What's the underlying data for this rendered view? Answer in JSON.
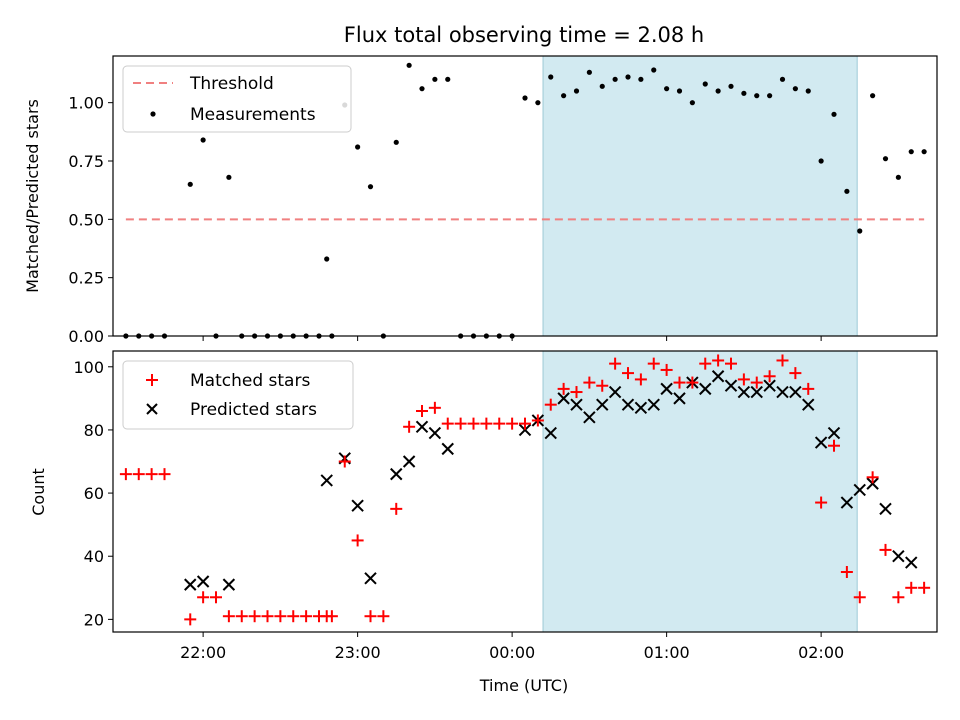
{
  "figure": {
    "title": "Flux total observing time = 2.08 h",
    "shaded_span": {
      "start": "00:12",
      "end": "02:14",
      "color": "#add8e6"
    }
  },
  "chart_data": [
    {
      "type": "scatter",
      "panel": "top",
      "title": "Flux total observing time = 2.08 h",
      "xlabel": "",
      "ylabel": "Matched/Predicted stars",
      "ylim": [
        0,
        1.2
      ],
      "yticks": [
        "0.00",
        "0.25",
        "0.50",
        "0.75",
        "1.00"
      ],
      "ytick_values": [
        0,
        0.25,
        0.5,
        0.75,
        1.0
      ],
      "legend": {
        "placement": "top-left",
        "entries": [
          "Threshold",
          "Measurements"
        ]
      },
      "threshold": {
        "name": "Threshold",
        "y": 0.5,
        "x_start": "21:30",
        "x_end": "02:40",
        "color": "#f08080"
      },
      "series": [
        {
          "name": "Measurements",
          "color": "#000000",
          "x": [
            "21:30",
            "21:35",
            "21:40",
            "21:45",
            "21:55",
            "22:00",
            "22:05",
            "22:10",
            "22:15",
            "22:20",
            "22:25",
            "22:30",
            "22:35",
            "22:40",
            "22:45",
            "22:48",
            "22:50",
            "22:55",
            "23:00",
            "23:05",
            "23:10",
            "23:15",
            "23:20",
            "23:25",
            "23:30",
            "23:35",
            "23:40",
            "23:45",
            "23:50",
            "23:55",
            "00:00",
            "00:05",
            "00:10",
            "00:15",
            "00:20",
            "00:25",
            "00:30",
            "00:35",
            "00:40",
            "00:45",
            "00:50",
            "00:55",
            "01:00",
            "01:05",
            "01:10",
            "01:15",
            "01:20",
            "01:25",
            "01:30",
            "01:35",
            "01:40",
            "01:45",
            "01:50",
            "01:55",
            "02:00",
            "02:05",
            "02:10",
            "02:15",
            "02:20",
            "02:25",
            "02:30",
            "02:35",
            "02:40"
          ],
          "values": [
            0,
            0,
            0,
            0,
            0.65,
            0.84,
            0,
            0.68,
            0,
            0,
            0,
            0,
            0,
            0,
            0,
            0.33,
            0,
            0.99,
            0.81,
            0.64,
            0,
            0.83,
            1.16,
            1.06,
            1.1,
            1.1,
            0,
            0,
            0,
            0,
            0,
            1.02,
            1.0,
            1.11,
            1.03,
            1.05,
            1.13,
            1.07,
            1.1,
            1.11,
            1.1,
            1.14,
            1.06,
            1.05,
            1.0,
            1.08,
            1.05,
            1.07,
            1.04,
            1.03,
            1.03,
            1.1,
            1.06,
            1.05,
            0.75,
            0.95,
            0.62,
            0.45,
            1.03,
            0.76,
            0.68,
            0.79,
            0.79
          ]
        }
      ]
    },
    {
      "type": "scatter",
      "panel": "bottom",
      "xlabel": "Time (UTC)",
      "ylabel": "Count",
      "ylim": [
        16,
        105
      ],
      "yticks": [
        "20",
        "40",
        "60",
        "80",
        "100"
      ],
      "ytick_values": [
        20,
        40,
        60,
        80,
        100
      ],
      "xlim": [
        "21:25",
        "02:45"
      ],
      "xticks": [
        "22:00",
        "23:00",
        "00:00",
        "01:00",
        "02:00"
      ],
      "legend": {
        "placement": "top-left",
        "entries": [
          "Matched stars",
          "Predicted stars"
        ]
      },
      "series": [
        {
          "name": "Matched stars",
          "color": "#ff0000",
          "marker": "plus",
          "x": [
            "21:30",
            "21:35",
            "21:40",
            "21:45",
            "21:55",
            "22:00",
            "22:05",
            "22:10",
            "22:15",
            "22:20",
            "22:25",
            "22:30",
            "22:35",
            "22:40",
            "22:45",
            "22:48",
            "22:50",
            "22:55",
            "23:00",
            "23:05",
            "23:10",
            "23:15",
            "23:20",
            "23:25",
            "23:30",
            "23:35",
            "23:40",
            "23:45",
            "23:50",
            "23:55",
            "00:00",
            "00:05",
            "00:10",
            "00:15",
            "00:20",
            "00:25",
            "00:30",
            "00:35",
            "00:40",
            "00:45",
            "00:50",
            "00:55",
            "01:00",
            "01:05",
            "01:10",
            "01:15",
            "01:20",
            "01:25",
            "01:30",
            "01:35",
            "01:40",
            "01:45",
            "01:50",
            "01:55",
            "02:00",
            "02:05",
            "02:10",
            "02:15",
            "02:20",
            "02:25",
            "02:30",
            "02:35",
            "02:40"
          ],
          "values": [
            66,
            66,
            66,
            66,
            20,
            27,
            27,
            21,
            21,
            21,
            21,
            21,
            21,
            21,
            21,
            21,
            21,
            70,
            45,
            21,
            21,
            55,
            81,
            86,
            87,
            82,
            82,
            82,
            82,
            82,
            82,
            82,
            83,
            88,
            93,
            92,
            95,
            94,
            101,
            98,
            96,
            101,
            99,
            95,
            95,
            101,
            102,
            101,
            96,
            95,
            97,
            102,
            98,
            93,
            57,
            75,
            35,
            27,
            65,
            42,
            27,
            30,
            30
          ]
        },
        {
          "name": "Predicted stars",
          "color": "#000000",
          "marker": "x",
          "x": [
            "21:55",
            "22:00",
            "22:10",
            "22:48",
            "22:55",
            "23:00",
            "23:05",
            "23:15",
            "23:20",
            "23:25",
            "23:30",
            "23:35",
            "00:05",
            "00:10",
            "00:15",
            "00:20",
            "00:25",
            "00:30",
            "00:35",
            "00:40",
            "00:45",
            "00:50",
            "00:55",
            "01:00",
            "01:05",
            "01:10",
            "01:15",
            "01:20",
            "01:25",
            "01:30",
            "01:35",
            "01:40",
            "01:45",
            "01:50",
            "01:55",
            "02:00",
            "02:05",
            "02:10",
            "02:15",
            "02:20",
            "02:25",
            "02:30",
            "02:35"
          ],
          "values": [
            31,
            32,
            31,
            64,
            71,
            56,
            33,
            66,
            70,
            81,
            79,
            74,
            80,
            83,
            79,
            90,
            88,
            84,
            88,
            92,
            88,
            87,
            88,
            93,
            90,
            95,
            93,
            97,
            94,
            92,
            92,
            94,
            92,
            92,
            88,
            76,
            79,
            57,
            61,
            63,
            55,
            40,
            38
          ]
        }
      ]
    }
  ]
}
